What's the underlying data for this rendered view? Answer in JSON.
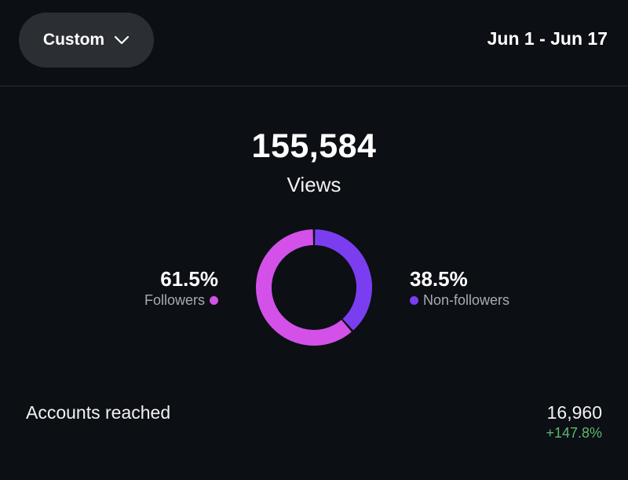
{
  "header": {
    "range_button_label": "Custom",
    "date_range": "Jun 1 - Jun 17"
  },
  "views": {
    "count": "155,584",
    "label": "Views"
  },
  "breakdown": {
    "followers": {
      "percent": "61.5%",
      "label": "Followers",
      "value": 61.5,
      "color": "#d351e8"
    },
    "non_followers": {
      "percent": "38.5%",
      "label": "Non-followers",
      "value": 38.5,
      "color": "#7a3ef0"
    }
  },
  "accounts_reached": {
    "label": "Accounts reached",
    "value": "16,960",
    "change": "+147.8%",
    "change_color": "#5bb86e"
  },
  "icons": {
    "dropdown": "chevron-down-icon"
  }
}
